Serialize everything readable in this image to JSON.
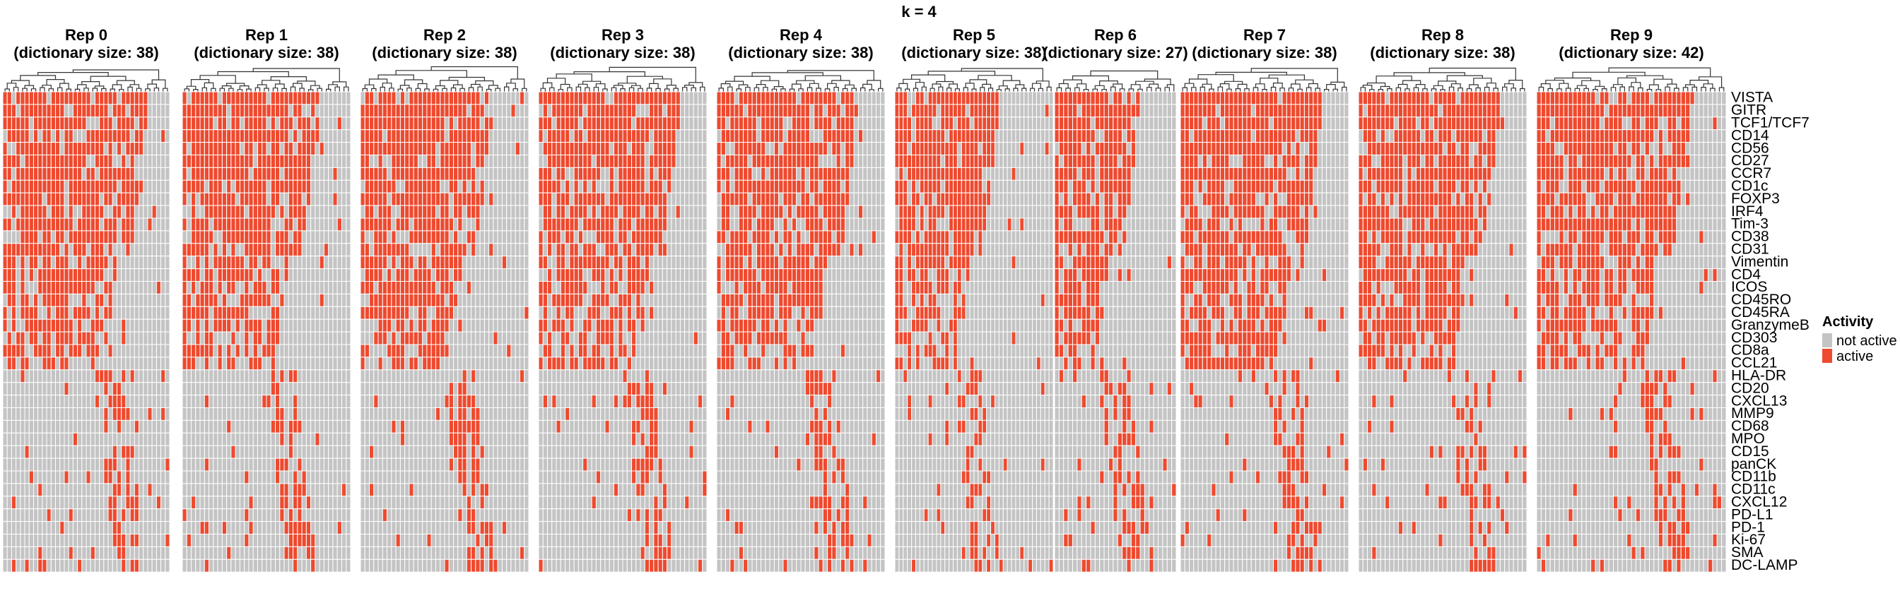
{
  "chart_data": {
    "type": "heatmap",
    "title": "k = 4",
    "row_labels": [
      "VISTA",
      "GITR",
      "TCF1/TCF7",
      "CD14",
      "CD56",
      "CD27",
      "CCR7",
      "CD1c",
      "FOXP3",
      "IRF4",
      "Tim-3",
      "CD38",
      "CD31",
      "Vimentin",
      "CD4",
      "ICOS",
      "CD45RO",
      "CD45RA",
      "GranzymeB",
      "CD303",
      "CD8a",
      "CCL21",
      "HLA-DR",
      "CD20",
      "CXCL13",
      "MMP9",
      "CD68",
      "MPO",
      "CD15",
      "panCK",
      "CD11b",
      "CD11c",
      "CXCL12",
      "PD-L1",
      "PD-1",
      "Ki-67",
      "SMA",
      "DC-LAMP"
    ],
    "legend": {
      "title": "Activity",
      "entries": [
        {
          "label": "not active",
          "color": "#c4c4c4"
        },
        {
          "label": "active",
          "color": "#ee4a2f"
        }
      ]
    },
    "panels": [
      {
        "title": "Rep 0",
        "subtitle": "(dictionary size: 38)",
        "columns": 38,
        "top_active": 33,
        "lower_start": 25
      },
      {
        "title": "Rep 1",
        "subtitle": "(dictionary size: 38)",
        "columns": 38,
        "top_active": 31,
        "lower_start": 23
      },
      {
        "title": "Rep 2",
        "subtitle": "(dictionary size: 38)",
        "columns": 38,
        "top_active": 30,
        "lower_start": 23
      },
      {
        "title": "Rep 3",
        "subtitle": "(dictionary size: 38)",
        "columns": 38,
        "top_active": 32,
        "lower_start": 23
      },
      {
        "title": "Rep 4",
        "subtitle": "(dictionary size: 38)",
        "columns": 38,
        "top_active": 32,
        "lower_start": 24
      },
      {
        "title": "Rep 5",
        "subtitle": "(dictionary size: 38)",
        "columns": 38,
        "top_active": 25,
        "lower_start": 18
      },
      {
        "title": "Rep 6",
        "subtitle": "(dictionary size: 27)",
        "columns": 27,
        "top_active": 19,
        "lower_start": 14
      },
      {
        "title": "Rep 7",
        "subtitle": "(dictionary size: 38)",
        "columns": 38,
        "top_active": 32,
        "lower_start": 24
      },
      {
        "title": "Rep 8",
        "subtitle": "(dictionary size: 38)",
        "columns": 38,
        "top_active": 32,
        "lower_start": 24
      },
      {
        "title": "Rep 9",
        "subtitle": "(dictionary size: 42)",
        "columns": 42,
        "top_active": 34,
        "lower_start": 27
      }
    ],
    "colors": {
      "active": "#ee4a2f",
      "not_active": "#c4c4c4",
      "cell_border": "#ffffff",
      "dendrogram": "#333333"
    }
  }
}
